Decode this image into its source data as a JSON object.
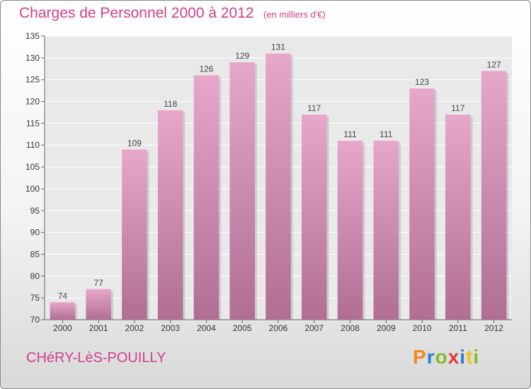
{
  "chart_data": {
    "type": "bar",
    "title": "Charges de Personnel 2000 à 2012",
    "subtitle": "(en milliers d'€)",
    "xlabel": "",
    "ylabel": "",
    "categories": [
      "2000",
      "2001",
      "2002",
      "2003",
      "2004",
      "2005",
      "2006",
      "2007",
      "2008",
      "2009",
      "2010",
      "2011",
      "2012"
    ],
    "values": [
      74,
      77,
      109,
      118,
      126,
      129,
      131,
      117,
      111,
      111,
      123,
      117,
      127
    ],
    "ylim": [
      70,
      135
    ],
    "yticks": [
      70,
      75,
      80,
      85,
      90,
      95,
      100,
      105,
      110,
      115,
      120,
      125,
      130,
      135
    ],
    "grid": true,
    "colors": {
      "bar_light": "#e6a7cb",
      "bar_dark": "#b06e93",
      "text_accent": "#d0408a"
    }
  },
  "footer": {
    "commune": "CHéRY-LèS-POUILLY",
    "logo": "Proxiti",
    "logo_colors": [
      "#f08a1c",
      "#2a7fd4",
      "#7fbf2a",
      "#e23a3a",
      "#2a7fd4",
      "#f0c21c",
      "#7fbf2a"
    ]
  }
}
